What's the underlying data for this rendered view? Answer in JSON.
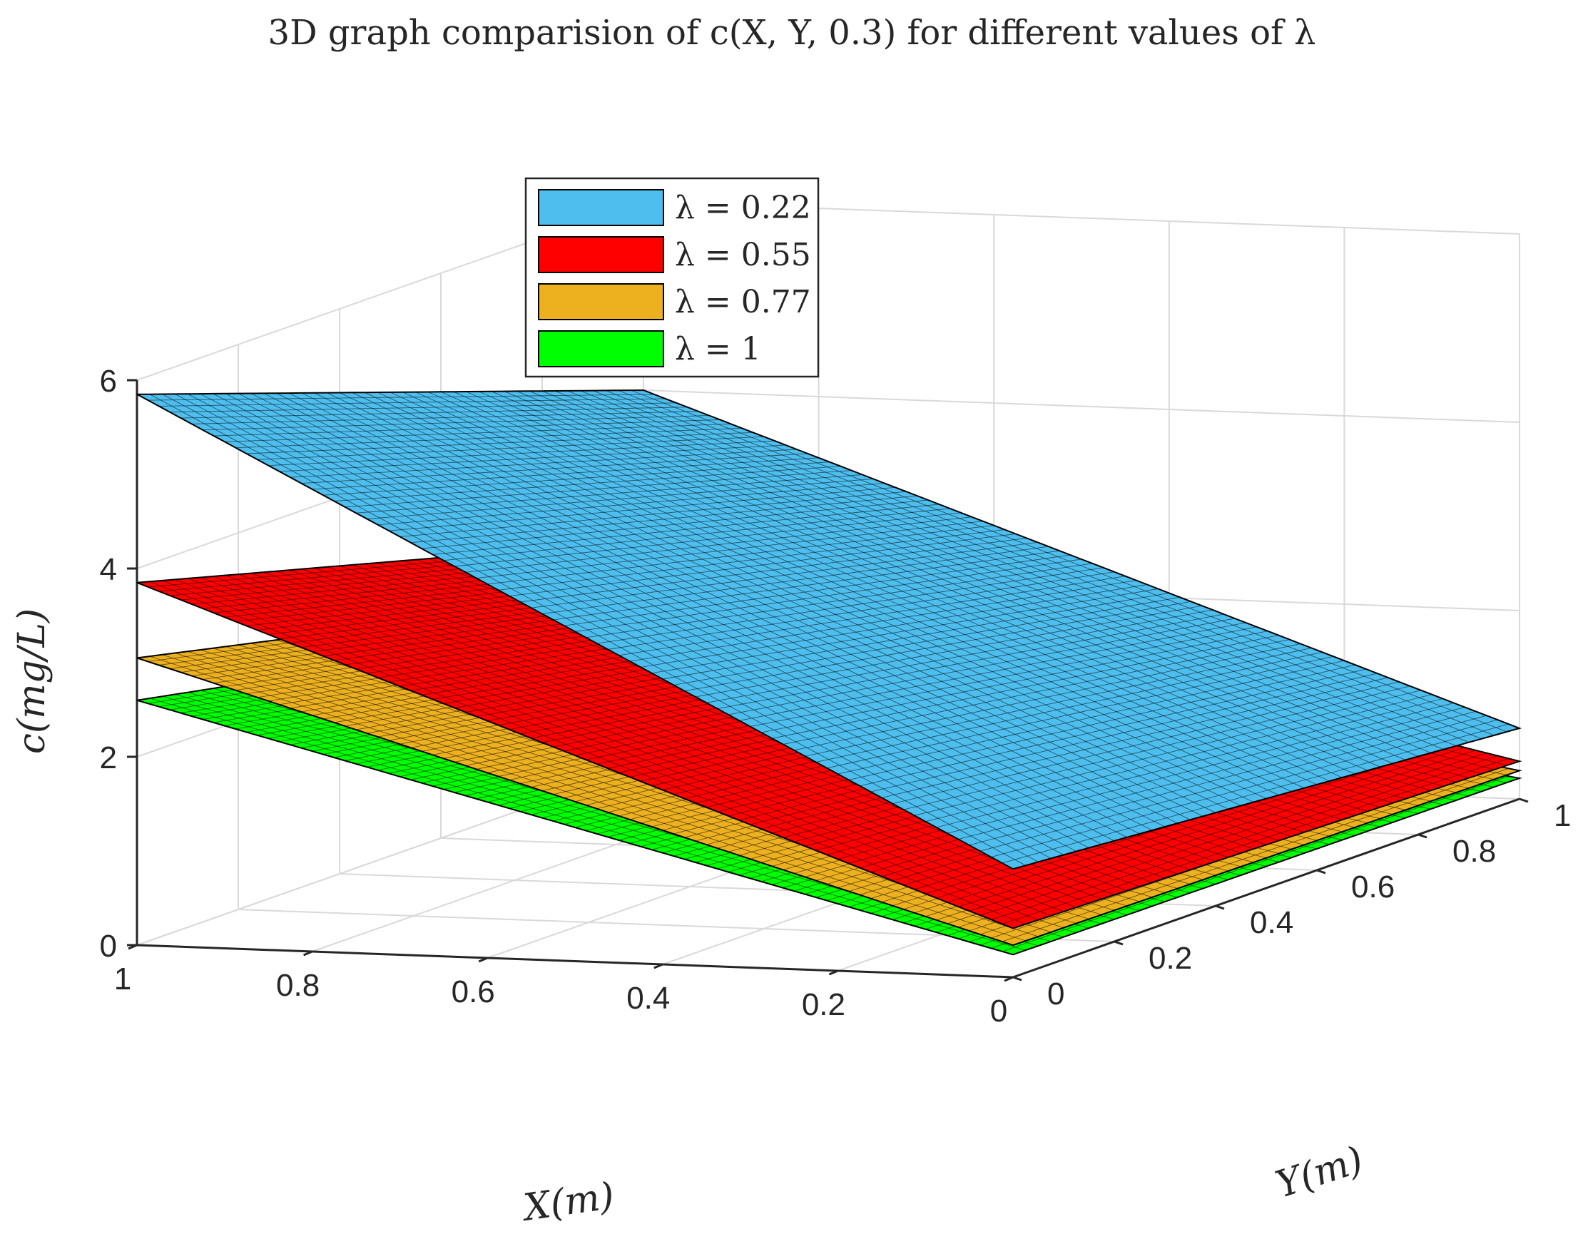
{
  "chart_data": {
    "type": "surface3d",
    "title": "3D graph comparision of c(X, Y, 0.3) for different values of λ",
    "xlabel": "X(m)",
    "ylabel": "Y(m)",
    "zlabel": "c(mg/L)",
    "xlim": [
      0,
      1
    ],
    "ylim": [
      0,
      1
    ],
    "zlim": [
      0,
      6
    ],
    "x_ticks": [
      "1",
      "0.8",
      "0.6",
      "0.4",
      "0.2",
      "0"
    ],
    "y_ticks": [
      "0",
      "0.2",
      "0.4",
      "0.6",
      "0.8",
      "1"
    ],
    "z_ticks": [
      "0",
      "2",
      "4",
      "6"
    ],
    "grid": true,
    "legend_position": "top-left",
    "series": [
      {
        "name": "λ = 0.22",
        "color": "#4DBEEE",
        "corners": {
          "x0_y0": 1.15,
          "x1_y0": 5.85,
          "x1_y1": 4.0,
          "x0_y1": 0.75
        }
      },
      {
        "name": "λ = 0.55",
        "color": "#FF0000",
        "corners": {
          "x0_y0": 0.52,
          "x1_y0": 3.85,
          "x1_y1": 2.4,
          "x0_y1": 0.4
        }
      },
      {
        "name": "λ = 0.77",
        "color": "#EDB120",
        "corners": {
          "x0_y0": 0.34,
          "x1_y0": 3.05,
          "x1_y1": 1.85,
          "x0_y1": 0.3
        }
      },
      {
        "name": "λ = 1",
        "color": "#00FF00",
        "corners": {
          "x0_y0": 0.24,
          "x1_y0": 2.6,
          "x1_y1": 1.55,
          "x0_y1": 0.22
        }
      }
    ]
  }
}
